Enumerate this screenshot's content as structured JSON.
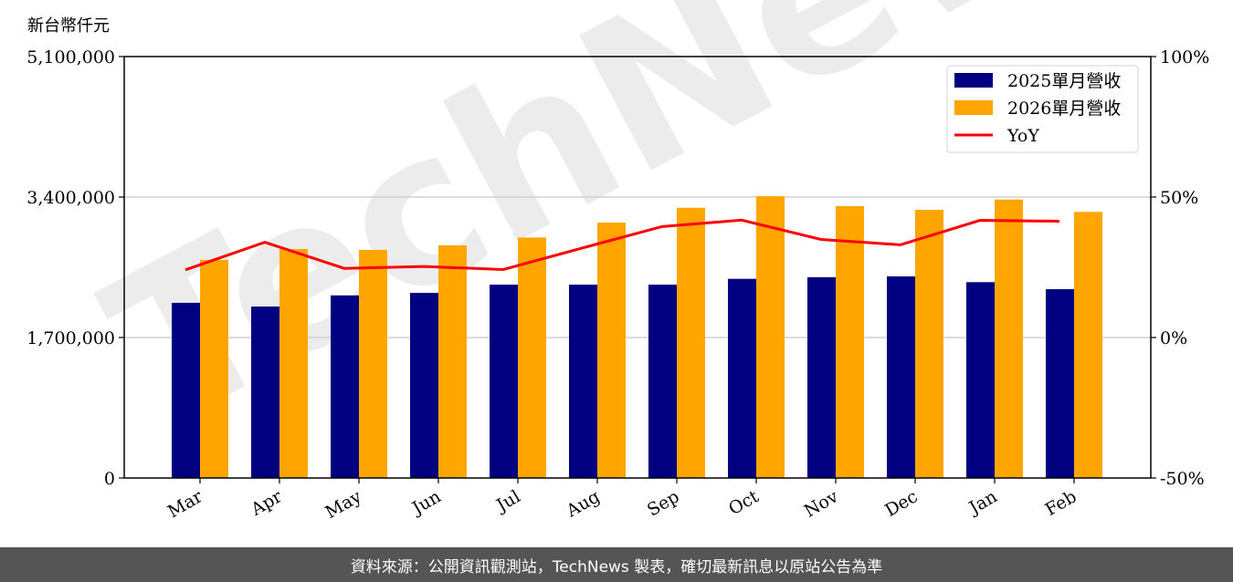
{
  "chart_data": {
    "type": "bar",
    "ylabel": "新台幣仟元",
    "categories": [
      "Mar",
      "Apr",
      "May",
      "Jun",
      "Jul",
      "Aug",
      "Sep",
      "Oct",
      "Nov",
      "Dec",
      "Jan",
      "Feb"
    ],
    "series": [
      {
        "name": "2025單月營收",
        "type": "bar",
        "color": "#000080",
        "values": [
          2120000,
          2075000,
          2210000,
          2240000,
          2340000,
          2340000,
          2340000,
          2410000,
          2430000,
          2440000,
          2370000,
          2285000
        ]
      },
      {
        "name": "2026單月營收",
        "type": "bar",
        "color": "#FFA500",
        "values": [
          2640000,
          2770000,
          2760000,
          2815000,
          2910000,
          3090000,
          3270000,
          3410000,
          3290000,
          3245000,
          3370000,
          3220000
        ]
      },
      {
        "name": "YoY",
        "type": "line",
        "axis": "right",
        "color": "#FF0000",
        "values": [
          24.1,
          33.9,
          24.6,
          25.3,
          24.2,
          31.9,
          39.5,
          41.8,
          34.9,
          33.0,
          41.7,
          41.4
        ]
      }
    ],
    "ylim": [
      0,
      5100000
    ],
    "yticks": [
      "0",
      "1,700,000",
      "3,400,000",
      "5,100,000"
    ],
    "yticks_values": [
      0,
      1700000,
      3400000,
      5100000
    ],
    "y2lim": [
      -50,
      100
    ],
    "y2ticks": [
      "-50%",
      "0%",
      "50%",
      "100%"
    ],
    "y2ticks_values": [
      -50,
      0,
      50,
      100
    ],
    "grid": "horizontal",
    "legend": "top-right"
  },
  "watermark": "TechNews",
  "footer": "資料來源：公開資訊觀測站，TechNews 製表，確切最新訊息以原站公告為準"
}
